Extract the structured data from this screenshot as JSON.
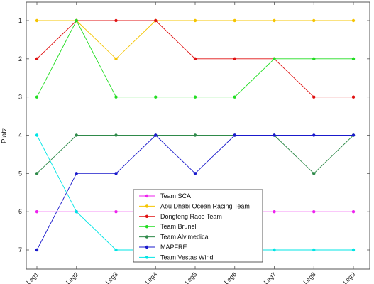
{
  "chart_data": {
    "type": "line",
    "title": "",
    "xlabel": "",
    "ylabel": "Platz",
    "categories": [
      "Leg1",
      "Leg2",
      "Leg3",
      "Leg4",
      "Leg5",
      "Leg6",
      "Leg7",
      "Leg8",
      "Leg9"
    ],
    "y_ticks": [
      1,
      2,
      3,
      4,
      5,
      6,
      7
    ],
    "ylim": [
      7.5,
      0.5
    ],
    "y_inverted": true,
    "grid": false,
    "legend_position": "bottom-center",
    "series": [
      {
        "name": "Team SCA",
        "color": "#ee22ee",
        "values": [
          6,
          6,
          6,
          6,
          6,
          6,
          6,
          6,
          6
        ]
      },
      {
        "name": "Abu Dhabi Ocean Racing Team",
        "color": "#f5c400",
        "values": [
          1,
          1,
          2,
          1,
          1,
          1,
          1,
          1,
          1
        ]
      },
      {
        "name": "Dongfeng Race Team",
        "color": "#e01010",
        "values": [
          2,
          1,
          1,
          1,
          2,
          2,
          2,
          3,
          3
        ]
      },
      {
        "name": "Team Brunel",
        "color": "#22dd22",
        "values": [
          3,
          1,
          3,
          3,
          3,
          3,
          2,
          2,
          2
        ]
      },
      {
        "name": "Team Alvimedica",
        "color": "#2f8a4a",
        "values": [
          5,
          4,
          4,
          4,
          4,
          4,
          4,
          5,
          4
        ]
      },
      {
        "name": "MAPFRE",
        "color": "#1a1acc",
        "values": [
          7,
          5,
          5,
          4,
          5,
          4,
          4,
          4,
          4
        ]
      },
      {
        "name": "Team Vestas Wind",
        "color": "#00e5e5",
        "values": [
          4,
          6,
          7,
          7,
          7,
          7,
          7,
          7,
          7
        ]
      }
    ]
  }
}
